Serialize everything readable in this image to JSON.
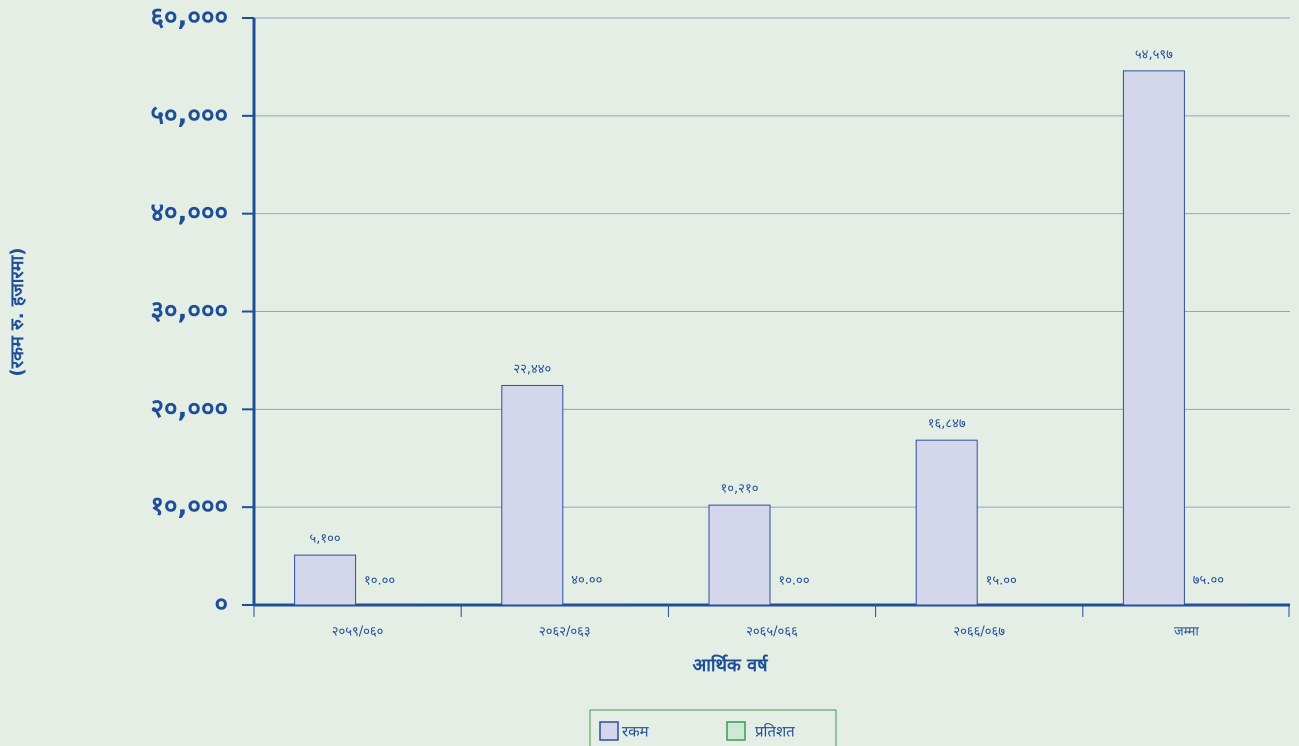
{
  "chart_data": {
    "type": "bar",
    "x_label": "आर्थिक वर्ष",
    "y_label": "(रकम रु. हजारमा)",
    "categories": [
      "२०५९/०६०",
      "२०६२/०६३",
      "२०६५/०६६",
      "२०६६/०६७",
      "जम्मा"
    ],
    "series": [
      {
        "name": "रकम",
        "color": "#d4d6ec",
        "values": [
          5100,
          22440,
          10210,
          16847,
          54597
        ],
        "value_labels": [
          "५,१००",
          "२२,४४०",
          "१०,२१०",
          "१६,८४७",
          "५४,५९७"
        ]
      },
      {
        "name": "प्रतिशत",
        "color": "#cde8d5",
        "values": [
          10,
          40,
          10,
          15,
          75
        ],
        "value_labels": [
          "१०.००",
          "४०.००",
          "१०.००",
          "१५.००",
          "७५.००"
        ]
      }
    ],
    "ylim": [
      0,
      60000
    ],
    "yticks": [
      {
        "value": 0,
        "label": "०"
      },
      {
        "value": 10000,
        "label": "१०,०००"
      },
      {
        "value": 20000,
        "label": "२०,०००"
      },
      {
        "value": 30000,
        "label": "३०,०००"
      },
      {
        "value": 40000,
        "label": "४०,०००"
      },
      {
        "value": 50000,
        "label": "५०,०००"
      },
      {
        "value": 60000,
        "label": "६०,०००"
      }
    ],
    "grid": true
  }
}
